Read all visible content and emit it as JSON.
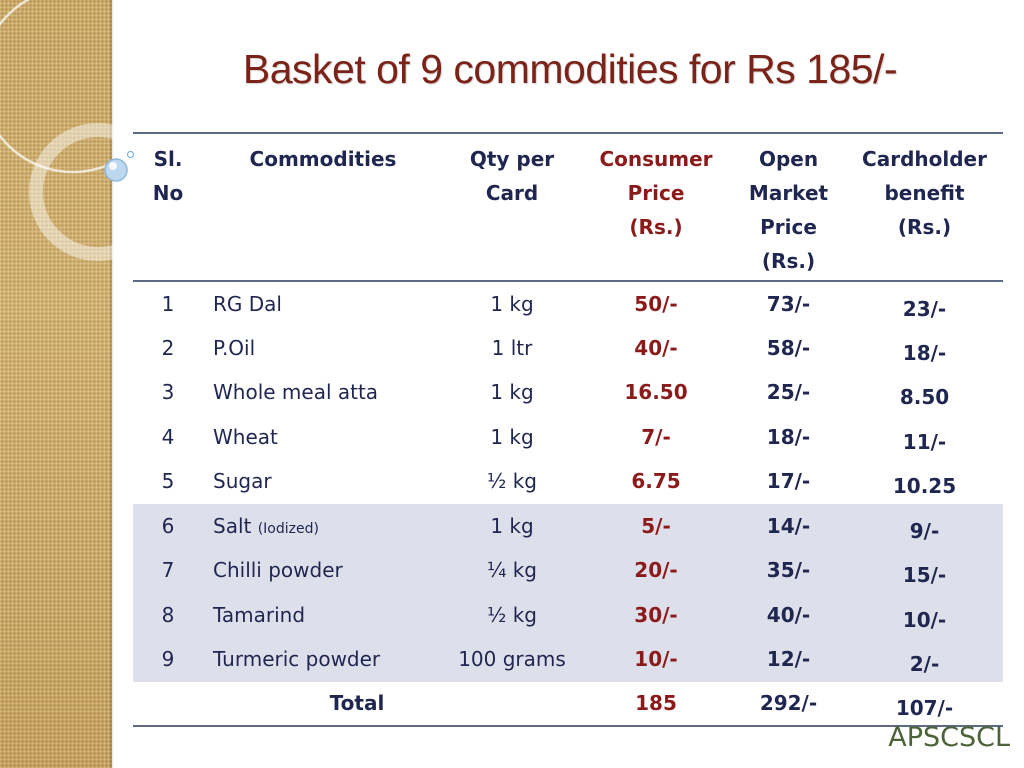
{
  "title": "Basket of 9 commodities for Rs 185/-",
  "headers": {
    "sl": "Sl.\nNo",
    "commodities": "Commodities",
    "qty": "Qty per\nCard",
    "consumer": "Consumer\nPrice\n(Rs.)",
    "open": "Open\nMarket\nPrice\n(Rs.)",
    "benefit": "Cardholder\nbenefit\n(Rs.)"
  },
  "rows": [
    {
      "sl": "1",
      "name": "RG Dal",
      "note": "",
      "qty": "1 kg",
      "consumer": "50/-",
      "open": "73/-",
      "benefit": "23/-"
    },
    {
      "sl": "2",
      "name": "P.Oil",
      "note": "",
      "qty": "1 ltr",
      "consumer": "40/-",
      "open": "58/-",
      "benefit": "18/-"
    },
    {
      "sl": "3",
      "name": "Whole meal atta",
      "note": "",
      "qty": "1 kg",
      "consumer": "16.50",
      "open": "25/-",
      "benefit": "8.50"
    },
    {
      "sl": "4",
      "name": "Wheat",
      "note": "",
      "qty": "1 kg",
      "consumer": "7/-",
      "open": "18/-",
      "benefit": "11/-"
    },
    {
      "sl": "5",
      "name": "Sugar",
      "note": "",
      "qty": "½ kg",
      "consumer": "6.75",
      "open": "17/-",
      "benefit": "10.25"
    },
    {
      "sl": "6",
      "name": "Salt",
      "note": "(Iodized)",
      "qty": "1 kg",
      "consumer": "5/-",
      "open": "14/-",
      "benefit": "9/-"
    },
    {
      "sl": "7",
      "name": "Chilli powder",
      "note": "",
      "qty": "¼ kg",
      "consumer": "20/-",
      "open": "35/-",
      "benefit": "15/-"
    },
    {
      "sl": "8",
      "name": "Tamarind",
      "note": "",
      "qty": "½ kg",
      "consumer": "30/-",
      "open": "40/-",
      "benefit": "10/-"
    },
    {
      "sl": "9",
      "name": "Turmeric powder",
      "note": "",
      "qty": "100 grams",
      "consumer": "10/-",
      "open": "12/-",
      "benefit": "2/-"
    }
  ],
  "total": {
    "label": "Total",
    "consumer": "185",
    "open": "292/-",
    "benefit": "107/-"
  },
  "footer": "APSCSCL",
  "colors": {
    "title": "#7b2318",
    "consumer": "#8b1a1a",
    "text": "#1f2650",
    "band": "#dde0ea",
    "footer": "#4c6238"
  }
}
